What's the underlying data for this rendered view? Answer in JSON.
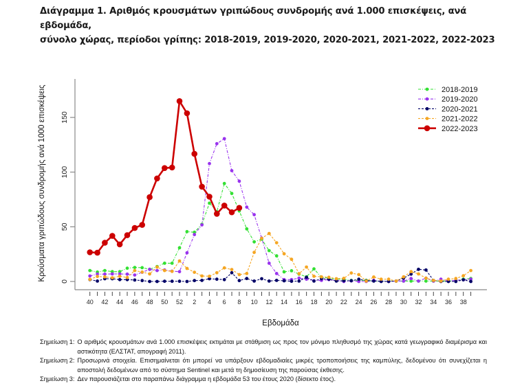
{
  "title": {
    "line1": "Διάγραμμα 1. Αριθμός κρουσμάτων γριπώδους συνδρομής ανά 1.000 επισκέψεις, ανά εβδομάδα,",
    "line2": "σύνολο χώρας, περίοδοι γρίπης: 2018-2019, 2019-2020, 2020-2021, 2021-2022, 2022-2023"
  },
  "notes": [
    {
      "label": "Σημείωση 1:",
      "text": "Ο αριθμός κρουσμάτων ανά 1.000 επισκέψεις εκτιμάται με στάθμιση ως προς τον μόνιμο πληθυσμό της χώρας κατά γεωγραφικό διαμέρισμα και αστικότητα (ΕΛΣΤΑΤ, απογραφή 2011)."
    },
    {
      "label": "Σημείωση 2:",
      "text": "Προσωρινά στοιχεία. Επισημαίνεται ότι μπορεί να υπάρξουν εβδομαδιαίες μικρές τροποποιήσεις της καμπύλης, δεδομένου ότι συνεχίζεται η αποστολή δεδομένων από το σύστημα Sentinel και μετά τη δημοσίευση της παρούσας έκθεσης."
    },
    {
      "label": "Σημείωση 3:",
      "text": "Δεν παρουσιάζεται στο παραπάνω διάγραμμα η εβδομάδα 53 του έτους 2020 (δίσεκτο έτος)."
    }
  ],
  "chart_data": {
    "type": "line",
    "title": "",
    "xlabel": "Εβδομάδα",
    "ylabel": "Κρούσματα γριπώδους συνδρομής ανά 1000 επισκέψεις",
    "ylim": [
      0,
      180
    ],
    "yticks": [
      0,
      50,
      100,
      150
    ],
    "grid": false,
    "legend_position": "top-right",
    "x": [
      40,
      41,
      42,
      43,
      44,
      45,
      46,
      47,
      48,
      49,
      50,
      51,
      52,
      1,
      2,
      3,
      4,
      5,
      6,
      7,
      8,
      9,
      10,
      11,
      12,
      13,
      14,
      15,
      16,
      17,
      18,
      19,
      20,
      21,
      22,
      23,
      24,
      25,
      26,
      27,
      28,
      29,
      30,
      31,
      32,
      33,
      34,
      35,
      36,
      37,
      38,
      39
    ],
    "xtick_labels": [
      "40",
      "42",
      "44",
      "46",
      "48",
      "50",
      "52",
      "2",
      "4",
      "6",
      "8",
      "10",
      "12",
      "14",
      "16",
      "18",
      "20",
      "22",
      "24",
      "26",
      "28",
      "30",
      "32",
      "34",
      "36",
      "38"
    ],
    "series": [
      {
        "name": "2018-2019",
        "color": "#33e033",
        "style": "dashdot",
        "values": [
          10,
          8.6,
          10,
          9,
          9,
          12.1,
          12.8,
          12.6,
          11.1,
          13.6,
          16.7,
          16.7,
          30.8,
          45.6,
          45,
          52.3,
          71.6,
          63.8,
          89.6,
          80.5,
          64.5,
          48.1,
          36.2,
          38.7,
          28.2,
          23.4,
          8.8,
          9.8,
          6.7,
          4.2,
          11.5,
          3.8,
          3.1,
          2.1,
          2.1,
          1.0,
          1.0,
          1.0,
          0.6,
          0.2,
          0.4,
          0.4,
          0.4,
          0.4,
          0.4,
          0.4,
          0.4,
          0.4,
          0.4,
          1.0,
          2.1,
          2.7
        ]
      },
      {
        "name": "2019-2020",
        "color": "#9933ee",
        "style": "dashdot",
        "values": [
          5,
          6.7,
          6.7,
          6.9,
          6.9,
          6.7,
          5.9,
          8.4,
          11.1,
          10,
          10.5,
          9.4,
          9.0,
          26.2,
          42.9,
          51.7,
          107.8,
          126,
          130.6,
          101.3,
          91.7,
          68,
          61.1,
          39.7,
          16.7,
          7.3,
          1.7,
          1.7,
          3.1,
          2.1,
          0.6,
          1.0,
          1.7,
          1.0,
          0,
          0.6,
          0,
          0,
          1.0,
          0.4,
          0,
          0.4,
          0.4,
          2.7,
          0.4,
          3.1,
          0.4,
          2.1,
          0.4,
          1.0,
          1.5,
          2.1
        ]
      },
      {
        "name": "2020-2021",
        "color": "#000066",
        "style": "dashed",
        "values": [
          1.7,
          0.4,
          2.5,
          2.5,
          1.7,
          1.7,
          1.3,
          0.8,
          0,
          0,
          0.2,
          0.2,
          0.2,
          0,
          0.8,
          1.0,
          2.5,
          2.1,
          1.7,
          8.0,
          0.8,
          2.7,
          0.4,
          2.5,
          0.4,
          1.0,
          0.6,
          0.2,
          0.4,
          3.8,
          0.4,
          2.5,
          2.1,
          0.4,
          0.6,
          0.6,
          2.1,
          0.6,
          0.4,
          0,
          0,
          0.4,
          3.1,
          6.7,
          11.1,
          10.5,
          1.0,
          0,
          0,
          0,
          1.5,
          0
        ]
      },
      {
        "name": "2021-2022",
        "color": "#f5a623",
        "style": "dashed",
        "values": [
          1.9,
          4.6,
          4.2,
          3.4,
          4.8,
          3.6,
          10,
          8.6,
          6.9,
          13.2,
          10,
          9.2,
          18.8,
          11.9,
          8.4,
          5.0,
          4.8,
          8.0,
          12.4,
          10.9,
          6.3,
          7.3,
          26.6,
          39.4,
          43.9,
          35.4,
          25.3,
          20.3,
          7.1,
          13.2,
          4.8,
          4.2,
          3.8,
          2.5,
          2.9,
          7.7,
          6.3,
          0.4,
          4.1,
          2.1,
          2.1,
          0.4,
          4.2,
          9.0,
          6.9,
          3.1,
          1.0,
          0.4,
          2.1,
          2.7,
          5.2,
          10.0
        ]
      },
      {
        "name": "2022-2023",
        "color": "#cc0000",
        "style": "solid",
        "values": [
          26.7,
          26.3,
          35.4,
          41.7,
          33.9,
          42.3,
          48.9,
          51.7,
          77.1,
          94.2,
          103.7,
          104.2,
          164.9,
          153.8,
          116.7,
          86.7,
          77.5,
          61.9,
          69.4,
          63.3,
          67.3
        ]
      }
    ]
  }
}
